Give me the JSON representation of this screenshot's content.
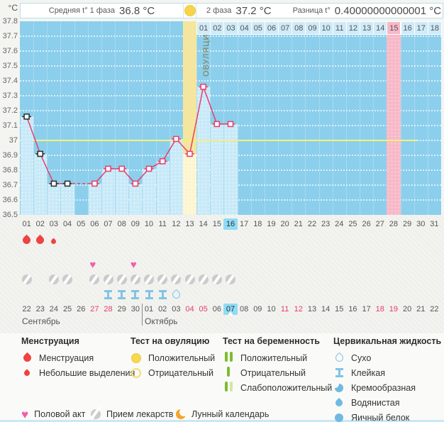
{
  "header": {
    "avg_phase1_label": "Средняя t° 1 фаза",
    "avg_phase1_value": "36.8 °C",
    "phase2_label": "2 фаза",
    "phase2_value": "37.2 °C",
    "diff_label": "Разница t°",
    "diff_value": "0.40000000000001 °C",
    "ovulation_day_icon": "positive-ovulation-test-icon"
  },
  "chart_data": {
    "type": "line",
    "title": "Basal body temperature cycle chart",
    "ylabel": "°C",
    "ylim": [
      36.5,
      37.8
    ],
    "ytick_step": 0.1,
    "grid": true,
    "coverline_temp": 37.0,
    "cycle_days": [
      "01",
      "02",
      "03",
      "04",
      "05",
      "06",
      "07",
      "08",
      "09",
      "10",
      "11",
      "12",
      "13",
      "14",
      "15",
      "16",
      "17",
      "18",
      "19",
      "20",
      "21",
      "22",
      "23",
      "24",
      "25",
      "26",
      "27",
      "28",
      "29",
      "30",
      "31"
    ],
    "temperatures": [
      37.16,
      36.91,
      36.71,
      36.71,
      null,
      36.71,
      36.81,
      36.81,
      36.71,
      36.81,
      36.86,
      37.01,
      36.91,
      37.36,
      37.11,
      37.11,
      null,
      null,
      null,
      null,
      null,
      null,
      null,
      null,
      null,
      null,
      null,
      null,
      null,
      null,
      null
    ],
    "black_marker_days": [
      1,
      2,
      3,
      4
    ],
    "ovulation_day": 13,
    "ovulation_column_label": "ОВУЛЯЦИЯ",
    "dpo_header_labels": [
      "01",
      "02",
      "03",
      "04",
      "05",
      "06",
      "07",
      "08",
      "09",
      "10",
      "11",
      "12",
      "13",
      "14",
      "15",
      "16",
      "17",
      "18"
    ],
    "expected_period_dpo": 15,
    "today_cycle_day": 16
  },
  "events": {
    "menstruation": [
      {
        "day": 1,
        "size": "big"
      },
      {
        "day": 2,
        "size": "big"
      },
      {
        "day": 3,
        "size": "small"
      }
    ],
    "intercourse_days": [
      6,
      9
    ],
    "medication_days": [
      1,
      3,
      4,
      6,
      7,
      8,
      9,
      10,
      11,
      12,
      13,
      14,
      15,
      16
    ],
    "cervical_fluid": [
      {
        "day": 7,
        "type": "sticky"
      },
      {
        "day": 8,
        "type": "sticky"
      },
      {
        "day": 9,
        "type": "sticky"
      },
      {
        "day": 10,
        "type": "sticky"
      },
      {
        "day": 11,
        "type": "sticky"
      },
      {
        "day": 12,
        "type": "dry"
      }
    ]
  },
  "calendar": {
    "month1": "Сентябрь",
    "month2": "Октябрь",
    "dates": [
      "22",
      "23",
      "24",
      "25",
      "26",
      "27",
      "28",
      "29",
      "30",
      "01",
      "02",
      "03",
      "04",
      "05",
      "06",
      "07",
      "08",
      "09",
      "10",
      "11",
      "12",
      "13",
      "14",
      "15",
      "16",
      "17",
      "18",
      "19",
      "20",
      "21",
      "22"
    ],
    "weekend_indices": [
      5,
      6,
      12,
      13,
      19,
      20,
      26,
      27
    ],
    "today_index": 15,
    "new_month_index": 9
  },
  "legend": {
    "sections": [
      {
        "title": "Менструация",
        "items": [
          {
            "icon": "menstruation-drop-icon",
            "label": "Менструация"
          },
          {
            "icon": "spotting-drop-icon",
            "label": "Небольшие выделения"
          }
        ]
      },
      {
        "title": "Тест на овуляцию",
        "items": [
          {
            "icon": "ovulation-test-positive-icon",
            "label": "Положительный"
          },
          {
            "icon": "ovulation-test-negative-icon",
            "label": "Отрицательный"
          }
        ]
      },
      {
        "title": "Тест на беременность",
        "items": [
          {
            "icon": "pregnancy-test-positive-icon",
            "label": "Положительный"
          },
          {
            "icon": "pregnancy-test-negative-icon",
            "label": "Отрицательный"
          },
          {
            "icon": "pregnancy-test-weak-icon",
            "label": "Слабоположительный"
          }
        ]
      },
      {
        "title": "Цервикальная жидкость",
        "items": [
          {
            "icon": "fluid-dry-icon",
            "label": "Сухо"
          },
          {
            "icon": "fluid-sticky-icon",
            "label": "Клейкая"
          },
          {
            "icon": "fluid-creamy-icon",
            "label": "Кремообразная"
          },
          {
            "icon": "fluid-watery-icon",
            "label": "Водянистая"
          },
          {
            "icon": "fluid-eggwhite-icon",
            "label": "Яичный белок"
          }
        ]
      }
    ],
    "footer_items": [
      {
        "icon": "intercourse-heart-icon",
        "label": "Половой акт"
      },
      {
        "icon": "medication-pill-icon",
        "label": "Прием лекарств"
      },
      {
        "icon": "moon-calendar-icon",
        "label": "Лунный календарь"
      }
    ]
  },
  "colors": {
    "plot_bg": "#8ccfec",
    "measured_column": "#c8e9f8",
    "ovulation_column": "#f4e69e",
    "expected_period_column": "#f7b9c8",
    "curve": "#e63e6d",
    "coverline": "#f6ef7d",
    "today_highlight": "#8edcf6",
    "weekend_text": "#ea3a66",
    "menstruation": "#ee4340",
    "intercourse": "#f55ca8",
    "medication": "#cbcbcb",
    "cervical_fluid": "#82c3e6",
    "ovulation_test": "#f8d44a",
    "pregnancy_test": "#7cbc30",
    "moon": "#f7a428"
  }
}
